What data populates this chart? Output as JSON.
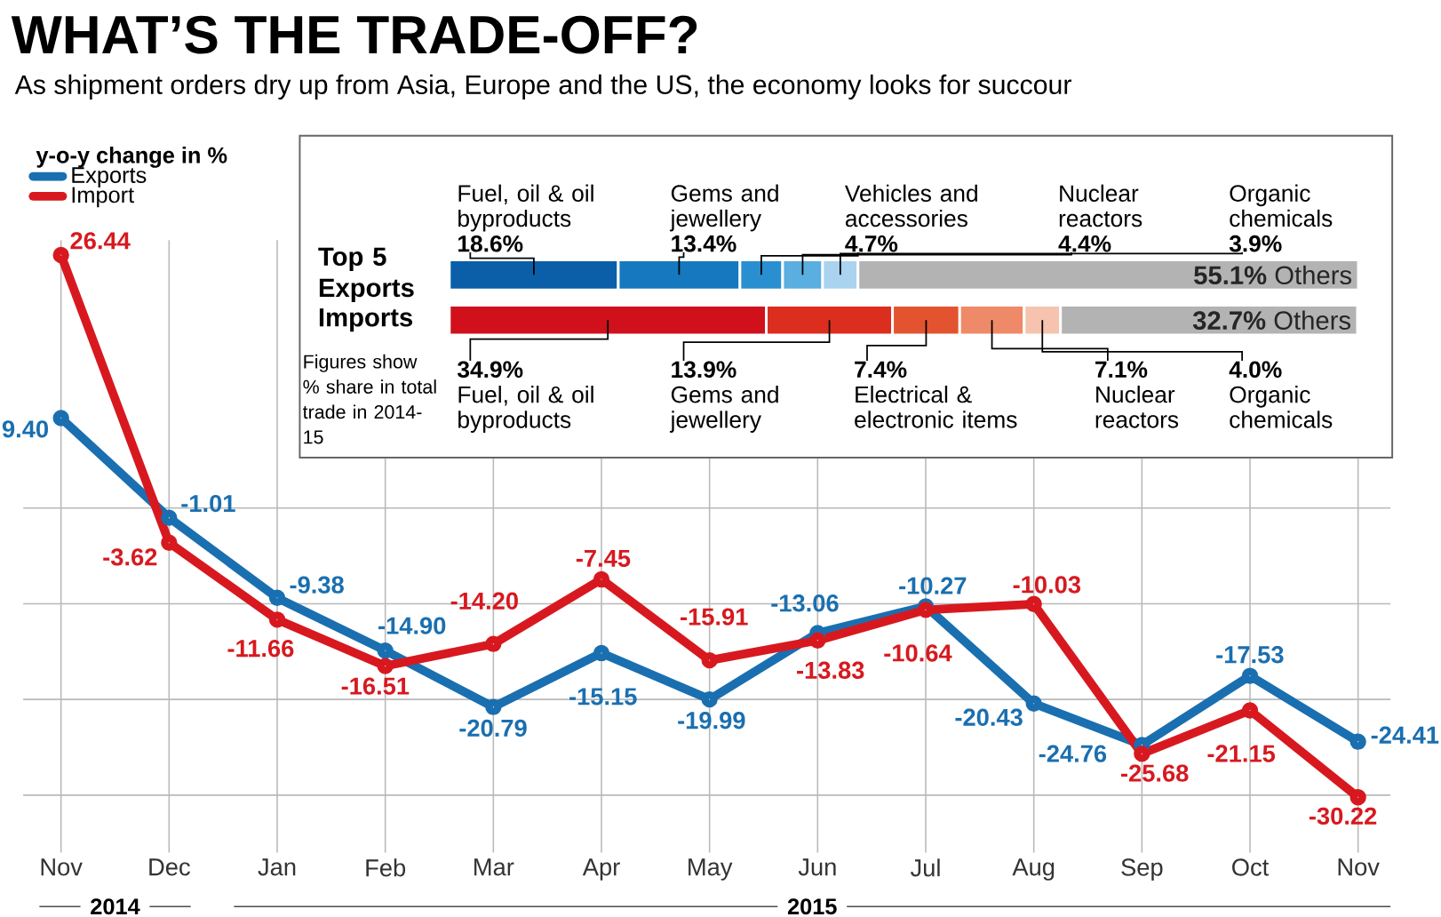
{
  "chart_data": [
    {
      "type": "line",
      "title": "WHAT’S THE TRADE-OFF?",
      "subtitle": "As shipment orders dry up from Asia, Europe and the US, the economy looks for succour",
      "legend_title": "y-o-y change in %",
      "legend": "top left",
      "grid": true,
      "marker": "circle",
      "line_style": "solid",
      "categories": [
        "Nov",
        "Dec",
        "Jan",
        "Feb",
        "Mar",
        "Apr",
        "May",
        "Jun",
        "Jul",
        "Aug",
        "Sep",
        "Oct",
        "Nov"
      ],
      "ylim": [
        -36,
        28
      ],
      "yticks": [
        {
          "value": 0,
          "label": null
        },
        {
          "value": -10,
          "label": null
        },
        {
          "value": -20,
          "label": null
        },
        {
          "value": -30,
          "label": null
        }
      ],
      "tick_labels": "x",
      "series": [
        {
          "name": "Exports",
          "color": "#1a6fb0",
          "values": [
            9.4,
            -1.01,
            -9.38,
            -14.9,
            -20.79,
            -15.15,
            -19.99,
            -13.06,
            -10.27,
            -20.43,
            -24.76,
            -17.53,
            -24.41
          ],
          "value_labels": [
            "9.40",
            "-1.01",
            "-9.38",
            "-14.90",
            "-20.79",
            "-15.15",
            "-19.99",
            "-13.06",
            "-10.27",
            "-20.43",
            "-24.76",
            "-17.53",
            "-24.41"
          ]
        },
        {
          "name": "Import",
          "color": "#d7191f",
          "values": [
            26.44,
            -3.62,
            -11.66,
            -16.51,
            -14.2,
            -7.45,
            -15.91,
            -13.83,
            -10.64,
            -10.03,
            -25.68,
            -21.15,
            -30.22
          ],
          "value_labels": [
            "26.44",
            "-3.62",
            "-11.66",
            "-16.51",
            "-14.20",
            "-7.45",
            "-15.91",
            "-13.83",
            "-10.64",
            "-10.03",
            "-25.68",
            "-21.15",
            "-30.22"
          ]
        }
      ],
      "annotations": [
        "2014",
        "2015"
      ]
    },
    {
      "type": "bar",
      "orientation": "horizontal",
      "stacked": true,
      "categories": [
        "Top 5 Exports",
        "Imports"
      ],
      "xlim": [
        0,
        100
      ],
      "tick_labels": "y",
      "series": [
        {
          "colors": [
            "#0a5fa8",
            "#d0101a"
          ],
          "values": [
            18.6,
            34.9
          ],
          "value_labels": [
            "18.6%",
            "34.9%"
          ]
        },
        {
          "colors": [
            "#1679c0",
            "#dc2e1e"
          ],
          "values": [
            13.4,
            13.9
          ],
          "value_labels": [
            "13.4%",
            "13.9%"
          ]
        },
        {
          "colors": [
            "#2a8fd0",
            "#e4532f"
          ],
          "values": [
            4.7,
            7.4
          ],
          "value_labels": [
            "4.7%",
            "7.4%"
          ]
        },
        {
          "colors": [
            "#5aaee0",
            "#ef8a68"
          ],
          "values": [
            4.4,
            7.1
          ],
          "value_labels": [
            "4.4%",
            "7.1%"
          ]
        },
        {
          "colors": [
            "#a9d3ef",
            "#f6c4ae"
          ],
          "values": [
            3.9,
            4.0
          ],
          "value_labels": [
            "3.9%",
            "4.0%"
          ]
        },
        {
          "name": "Others",
          "colors": [
            "#b3b3b3",
            "#b3b3b3"
          ],
          "values": [
            55.1,
            32.7
          ],
          "value_labels": [
            "55.1%",
            "32.7%"
          ]
        }
      ],
      "annotations": [
        "Fuel, oil & oil byproducts",
        "Gems and jewellery",
        "Vehicles and accessories",
        "Nuclear reactors",
        "Organic chemicals",
        "Fuel, oil & oil byproducts",
        "Gems and jewellery",
        "Electrical & electronic items",
        "Nuclear reactors",
        "Organic chemicals",
        "Figures show % share in total trade in 2014-15"
      ]
    }
  ]
}
